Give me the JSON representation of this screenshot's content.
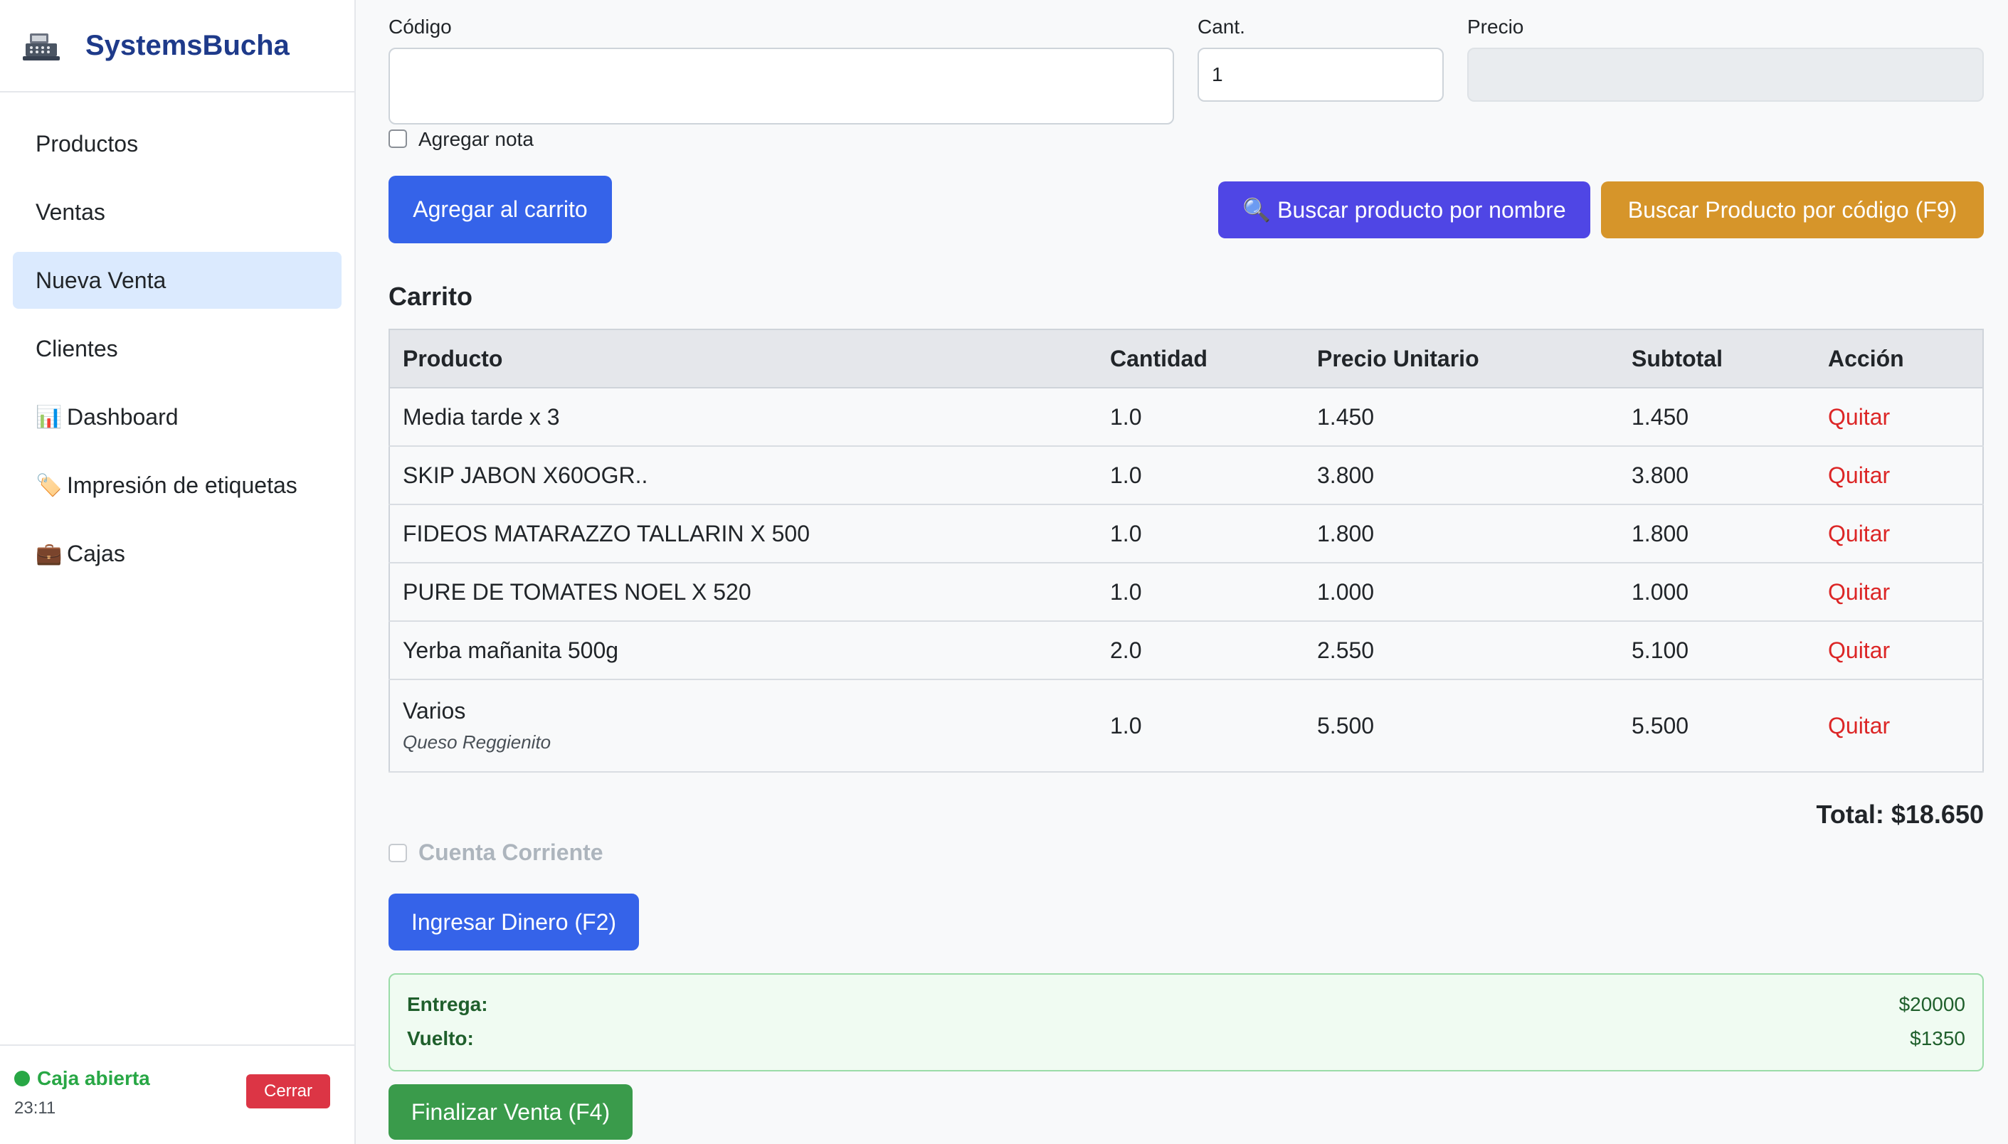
{
  "brand": {
    "name": "SystemsBucha",
    "logo_icon": "cash-register-icon"
  },
  "sidebar": {
    "items": [
      {
        "label": "Productos",
        "icon": "",
        "active": false
      },
      {
        "label": "Ventas",
        "icon": "",
        "active": false
      },
      {
        "label": "Nueva Venta",
        "icon": "",
        "active": true
      },
      {
        "label": "Clientes",
        "icon": "",
        "active": false
      },
      {
        "label": "Dashboard",
        "icon": "📊",
        "active": false
      },
      {
        "label": "Impresión de etiquetas",
        "icon": "🏷️",
        "active": false
      },
      {
        "label": "Cajas",
        "icon": "💼",
        "active": false
      }
    ],
    "footer": {
      "status": "Caja abierta",
      "time": "23:11",
      "close_label": "Cerrar",
      "status_color": "#28a745"
    }
  },
  "form": {
    "code_label": "Código",
    "code_value": "",
    "qty_label": "Cant.",
    "qty_value": "1",
    "price_label": "Precio",
    "price_value": "",
    "note_label": "Agregar nota",
    "add_button": "Agregar al carrito",
    "search_name_button": "🔍 Buscar producto por nombre",
    "search_code_button": "Buscar Producto por código (F9)"
  },
  "cart": {
    "title": "Carrito",
    "headers": [
      "Producto",
      "Cantidad",
      "Precio Unitario",
      "Subtotal",
      "Acción"
    ],
    "rows": [
      {
        "product": "Media tarde x 3",
        "note": "",
        "qty": "1.0",
        "unit": "1.450",
        "subtotal": "1.450",
        "action": "Quitar"
      },
      {
        "product": "SKIP JABON X60OGR..",
        "note": "",
        "qty": "1.0",
        "unit": "3.800",
        "subtotal": "3.800",
        "action": "Quitar"
      },
      {
        "product": "FIDEOS MATARAZZO TALLARIN X 500",
        "note": "",
        "qty": "1.0",
        "unit": "1.800",
        "subtotal": "1.800",
        "action": "Quitar"
      },
      {
        "product": "PURE DE TOMATES NOEL X 520",
        "note": "",
        "qty": "1.0",
        "unit": "1.000",
        "subtotal": "1.000",
        "action": "Quitar"
      },
      {
        "product": "Yerba mañanita 500g",
        "note": "",
        "qty": "2.0",
        "unit": "2.550",
        "subtotal": "5.100",
        "action": "Quitar"
      },
      {
        "product": "Varios",
        "note": "Queso Reggienito",
        "qty": "1.0",
        "unit": "5.500",
        "subtotal": "5.500",
        "action": "Quitar"
      }
    ],
    "total": "Total: $18.650"
  },
  "payment": {
    "cuenta_corriente_label": "Cuenta Corriente",
    "ingresar_button": "Ingresar Dinero (F2)",
    "entrega_label": "Entrega:",
    "entrega_value": "$20000",
    "vuelto_label": "Vuelto:",
    "vuelto_value": "$1350",
    "finalizar_button": "Finalizar Venta (F4)"
  }
}
